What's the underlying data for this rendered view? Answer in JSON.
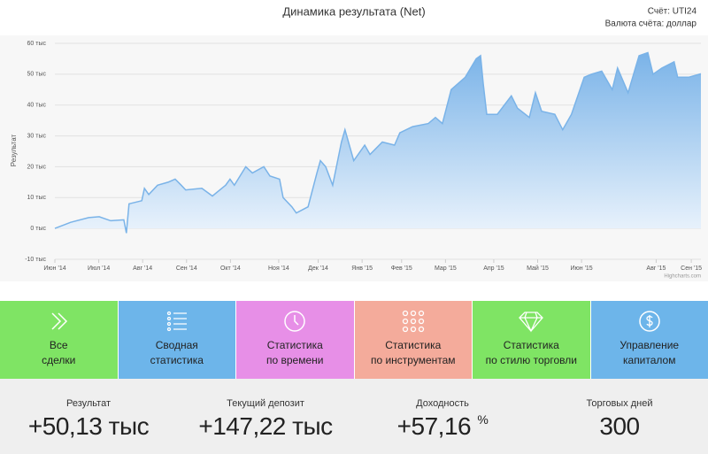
{
  "header": {
    "title": "Динамика результата (Net)",
    "account": "Счёт: UTI24",
    "currency": "Валюта счёта: доллар"
  },
  "chart_data": {
    "type": "area",
    "y_label": "Результат",
    "credit": "Highcharts.com",
    "color": "#7ab3e8",
    "x": [
      0,
      0.36,
      0.77,
      1.01,
      1.27,
      1.57,
      1.63,
      1.69,
      1.98,
      2.04,
      2.14,
      2.34,
      2.58,
      2.74,
      2.88,
      2.98,
      3.35,
      3.59,
      3.89,
      3.99,
      4.09,
      4.35,
      4.5,
      4.76,
      4.9,
      5.12,
      5.2,
      5.4,
      5.5,
      5.77,
      5.97,
      6.05,
      6.17,
      6.33,
      6.53,
      6.61,
      6.81,
      7.06,
      7.18,
      7.46,
      7.74,
      7.86,
      8.15,
      8.51,
      8.67,
      8.83,
      9.03,
      9.35,
      9.6,
      9.7,
      9.76,
      9.84,
      10.08,
      10.4,
      10.54,
      10.81,
      10.95,
      11.09,
      11.39,
      11.57,
      11.77,
      12.06,
      12.22,
      12.46,
      12.7,
      12.82,
      13.06,
      13.31,
      13.51,
      13.63,
      13.83,
      14.11,
      14.19,
      14.44,
      14.72
    ],
    "values": [
      0,
      2,
      3.5,
      3.8,
      2.5,
      2.8,
      -1.5,
      8,
      9,
      13,
      11,
      14,
      15,
      16,
      14,
      12.5,
      13,
      10.5,
      14,
      16,
      14,
      20,
      18,
      20,
      17,
      16,
      10,
      7,
      5,
      7,
      18,
      22,
      20,
      14,
      28,
      32,
      22,
      27,
      24,
      28,
      27,
      31,
      33,
      34,
      36,
      34,
      45,
      49,
      55,
      56,
      47,
      37,
      37,
      43,
      39,
      36,
      44,
      38,
      37,
      32,
      37,
      49,
      50,
      51,
      45,
      52,
      44,
      56,
      57,
      50,
      52,
      54,
      49,
      49,
      50.13
    ],
    "xlim": [
      0,
      14.72
    ],
    "xticks": [
      {
        "value": 0,
        "label": "Июн '14"
      },
      {
        "value": 1,
        "label": "Июл '14"
      },
      {
        "value": 2,
        "label": "Авг '14"
      },
      {
        "value": 3,
        "label": "Сен '14"
      },
      {
        "value": 4,
        "label": "Окт '14"
      },
      {
        "value": 5.1,
        "label": "Ноя '14"
      },
      {
        "value": 6,
        "label": "Дек '14"
      },
      {
        "value": 7,
        "label": "Янв '15"
      },
      {
        "value": 7.9,
        "label": "Фев '15"
      },
      {
        "value": 8.9,
        "label": "Мар '15"
      },
      {
        "value": 10,
        "label": "Апр '15"
      },
      {
        "value": 11,
        "label": "Май '15"
      },
      {
        "value": 12,
        "label": "Июн '15"
      },
      {
        "value": 13.7,
        "label": "Авг '15"
      },
      {
        "value": 14.5,
        "label": "Сен '15"
      }
    ],
    "ylim": [
      -10,
      60
    ],
    "yticks": [
      {
        "value": -10,
        "label": "-10 тыс"
      },
      {
        "value": 0,
        "label": "0 тыс"
      },
      {
        "value": 10,
        "label": "10 тыс"
      },
      {
        "value": 20,
        "label": "20 тыс"
      },
      {
        "value": 30,
        "label": "30 тыс"
      },
      {
        "value": 40,
        "label": "40 тыс"
      },
      {
        "value": 50,
        "label": "50 тыс"
      },
      {
        "value": 60,
        "label": "60 тыс"
      }
    ],
    "grid": true
  },
  "tiles": [
    {
      "line1": "Все",
      "line2": "сделки",
      "color": "#7fe464"
    },
    {
      "line1": "Сводная",
      "line2": "статистика",
      "color": "#6db5ea"
    },
    {
      "line1": "Статистика",
      "line2": "по времени",
      "color": "#e78fe7"
    },
    {
      "line1": "Статистика",
      "line2": "по инструментам",
      "color": "#f4ab9b"
    },
    {
      "line1": "Статистика",
      "line2": "по стилю торговли",
      "color": "#7fe464"
    },
    {
      "line1": "Управление",
      "line2": "капиталом",
      "color": "#6db5ea"
    }
  ],
  "stats": [
    {
      "label": "Результат",
      "value": "+50,13 тыс"
    },
    {
      "label": "Текущий депозит",
      "value": "+147,22 тыс"
    },
    {
      "label": "Доходность",
      "value": "+57,16",
      "unit": "%"
    },
    {
      "label": "Торговых дней",
      "value": "300"
    }
  ]
}
